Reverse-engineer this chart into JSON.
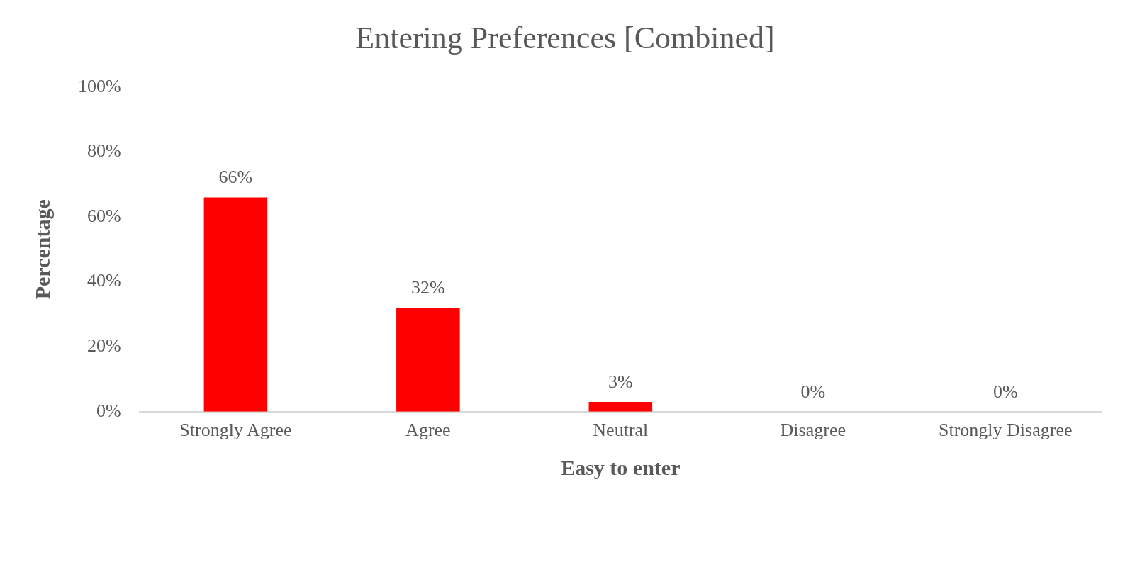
{
  "chart_data": {
    "type": "bar",
    "title": "Entering Preferences [Combined]",
    "xlabel": "Easy to enter",
    "ylabel": "Percentage",
    "categories": [
      "Strongly Agree",
      "Agree",
      "Neutral",
      "Disagree",
      "Strongly Disagree"
    ],
    "values": [
      66,
      32,
      3,
      0,
      0
    ],
    "color": "#ff0000",
    "value_labels": [
      "66%",
      "32%",
      "3%",
      "0%",
      "0%"
    ],
    "ylim": [
      0,
      100
    ],
    "yticks": [
      {
        "value": 0,
        "label": "0%"
      },
      {
        "value": 20,
        "label": "20%"
      },
      {
        "value": 40,
        "label": "40%"
      },
      {
        "value": 60,
        "label": "60%"
      },
      {
        "value": 80,
        "label": "80%"
      },
      {
        "value": 100,
        "label": "100%"
      }
    ],
    "grid": false,
    "legend": false
  }
}
